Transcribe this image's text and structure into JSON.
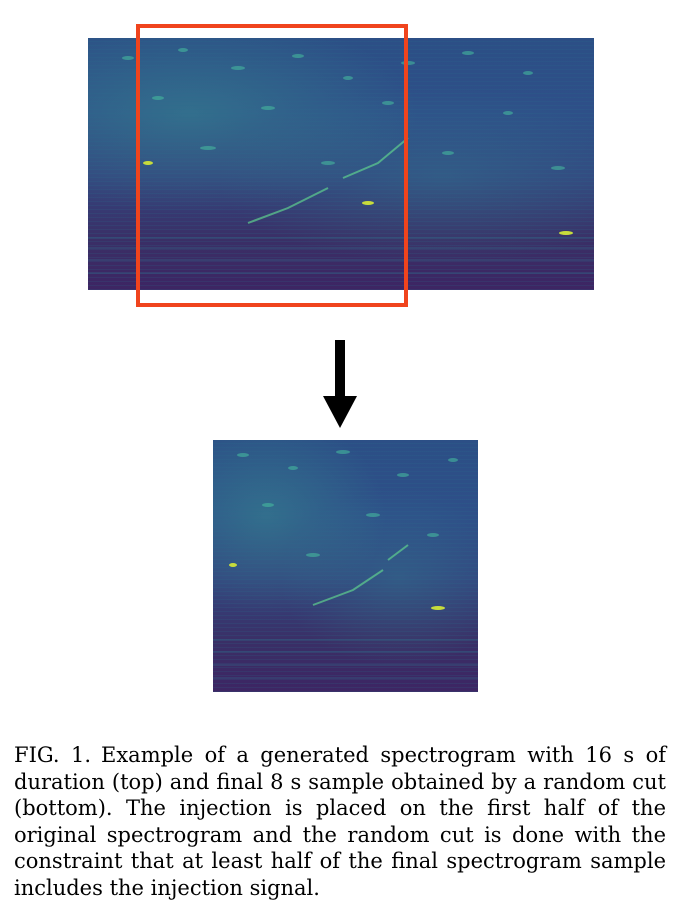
{
  "figure": {
    "caption_label": "FIG. 1.",
    "caption_text": "Example of a generated spectrogram with 16 s of duration (top) and final 8 s sample obtained by a random cut (bottom). The injection is placed on the first half of the original spectrogram and the random cut is done with the constraint that at least half of the final spectrogram sample includes the injection signal."
  },
  "colors": {
    "cut_box": "#f0441d",
    "arrow": "#000000",
    "spectrogram_dark": "#3d2563",
    "spectrogram_mid": "#2c4f86",
    "spectrogram_bright": "#b6d94a"
  }
}
